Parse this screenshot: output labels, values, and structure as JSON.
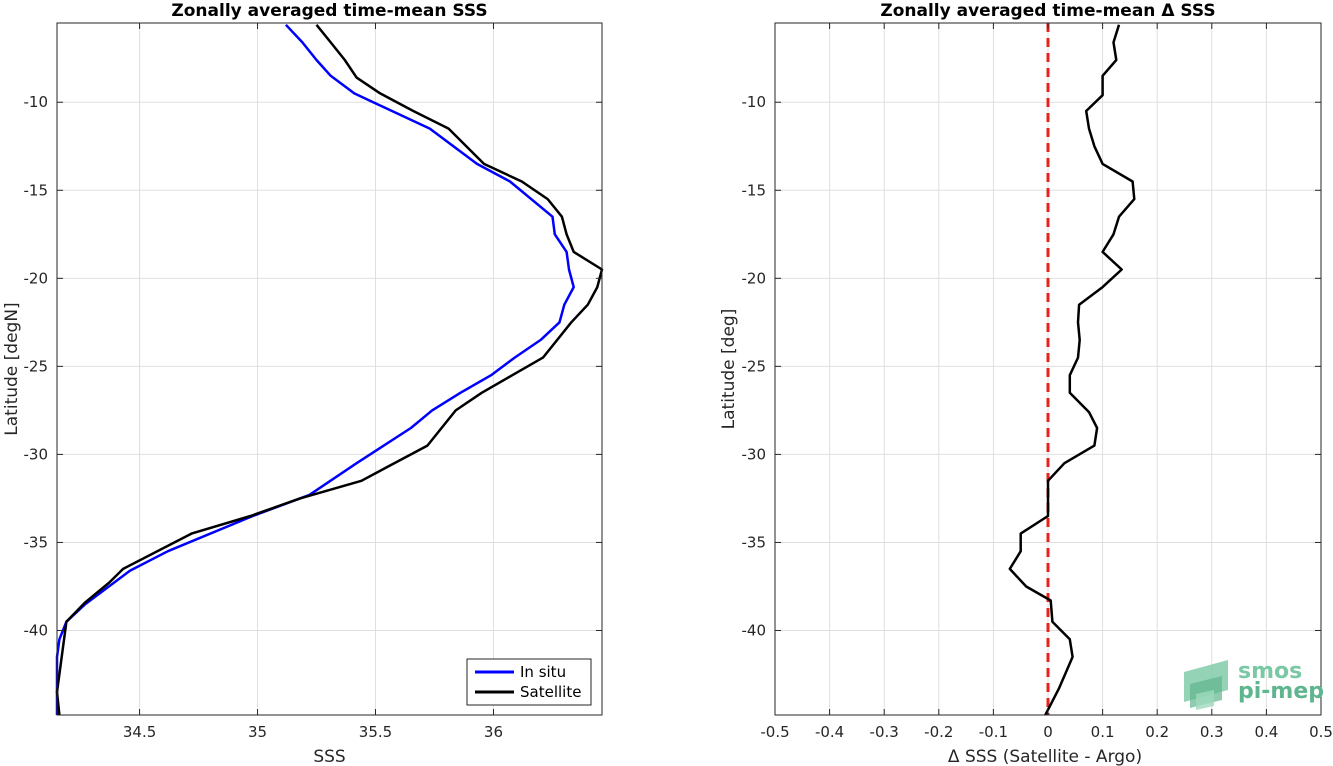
{
  "chart_data": [
    {
      "type": "line",
      "title": "Zonally averaged time-mean SSS",
      "xlabel": "SSS",
      "ylabel": "Latitude [degN]",
      "xlim": [
        34.15,
        36.46
      ],
      "ylim": [
        -44.8,
        -5.5
      ],
      "xticks": [
        34.5,
        35,
        35.5,
        36
      ],
      "xtick_labels": [
        "34.5",
        "35",
        "35.5",
        "36"
      ],
      "yticks": [
        -10,
        -15,
        -20,
        -25,
        -30,
        -35,
        -40
      ],
      "ytick_labels": [
        "-10",
        "-15",
        "-20",
        "-25",
        "-30",
        "-35",
        "-40"
      ],
      "grid": true,
      "legend_position": "bottom-right",
      "series": [
        {
          "name": "In situ",
          "color": "#0000ff",
          "x": [
            35.12,
            35.19,
            35.25,
            35.31,
            35.41,
            35.57,
            35.73,
            35.93,
            36.07,
            36.25,
            36.26,
            36.31,
            36.32,
            36.34,
            36.3,
            36.28,
            36.2,
            36.09,
            35.99,
            35.86,
            35.74,
            35.65,
            35.42,
            35.22,
            34.98,
            34.62,
            34.46,
            34.27,
            34.19,
            34.16,
            34.15,
            34.15
          ],
          "y": [
            -5.6,
            -6.6,
            -7.6,
            -8.5,
            -9.5,
            -10.5,
            -11.5,
            -13.5,
            -14.5,
            -16.5,
            -17.5,
            -18.5,
            -19.5,
            -20.5,
            -21.5,
            -22.5,
            -23.5,
            -24.5,
            -25.5,
            -26.5,
            -27.5,
            -28.5,
            -30.5,
            -32.3,
            -33.5,
            -35.5,
            -36.6,
            -38.5,
            -39.5,
            -40.5,
            -41.5,
            -44.8
          ]
        },
        {
          "name": "Satellite",
          "color": "#000000",
          "x": [
            35.25,
            35.31,
            35.37,
            35.42,
            35.52,
            35.66,
            35.81,
            35.96,
            36.12,
            36.23,
            36.29,
            36.31,
            36.34,
            36.46,
            36.44,
            36.4,
            36.33,
            36.21,
            36.08,
            35.95,
            35.84,
            35.72,
            35.44,
            35.18,
            34.97,
            34.72,
            34.43,
            34.37,
            34.27,
            34.19,
            34.17,
            34.15,
            34.16
          ],
          "y": [
            -5.6,
            -6.6,
            -7.6,
            -8.6,
            -9.5,
            -10.5,
            -11.5,
            -13.5,
            -14.5,
            -15.5,
            -16.5,
            -17.5,
            -18.5,
            -19.5,
            -20.5,
            -21.5,
            -22.5,
            -24.5,
            -25.5,
            -26.5,
            -27.5,
            -29.5,
            -31.5,
            -32.5,
            -33.5,
            -34.5,
            -36.5,
            -37.3,
            -38.4,
            -39.5,
            -41.5,
            -43.5,
            -44.8
          ]
        }
      ]
    },
    {
      "type": "line",
      "title": "Zonally averaged time-mean Δ SSS",
      "xlabel": "Δ SSS (Satellite - Argo)",
      "ylabel": "Latitude [deg]",
      "xlim": [
        -0.5,
        0.5
      ],
      "ylim": [
        -44.8,
        -5.5
      ],
      "xticks": [
        -0.5,
        -0.4,
        -0.3,
        -0.2,
        -0.1,
        0,
        0.1,
        0.2,
        0.3,
        0.4,
        0.5
      ],
      "xtick_labels": [
        "-0.5",
        "-0.4",
        "-0.3",
        "-0.2",
        "-0.1",
        "0",
        "0.1",
        "0.2",
        "0.3",
        "0.4",
        "0.5"
      ],
      "yticks": [
        -10,
        -15,
        -20,
        -25,
        -30,
        -35,
        -40
      ],
      "ytick_labels": [
        "-10",
        "-15",
        "-20",
        "-25",
        "-30",
        "-35",
        "-40"
      ],
      "grid": true,
      "reference_line": {
        "x": 0,
        "color": "#e8231f",
        "style": "dashed"
      },
      "series": [
        {
          "color": "#000000",
          "x": [
            0.13,
            0.12,
            0.125,
            0.1,
            0.1,
            0.07,
            0.075,
            0.085,
            0.1,
            0.155,
            0.158,
            0.13,
            0.12,
            0.1,
            0.135,
            0.1,
            0.057,
            0.055,
            0.058,
            0.055,
            0.04,
            0.04,
            0.075,
            0.09,
            0.085,
            0.03,
            0.0,
            0.0,
            -0.05,
            -0.05,
            -0.07,
            -0.04,
            0.005,
            0.008,
            0.04,
            0.045,
            0.02,
            -0.005
          ],
          "y": [
            -5.6,
            -6.6,
            -7.6,
            -8.5,
            -9.6,
            -10.5,
            -11.5,
            -12.5,
            -13.5,
            -14.5,
            -15.5,
            -16.5,
            -17.5,
            -18.5,
            -19.5,
            -20.5,
            -21.5,
            -22.5,
            -23.5,
            -24.5,
            -25.5,
            -26.5,
            -27.6,
            -28.5,
            -29.5,
            -30.5,
            -31.5,
            -33.5,
            -34.5,
            -35.5,
            -36.5,
            -37.5,
            -38.3,
            -39.5,
            -40.5,
            -41.5,
            -43.3,
            -44.8
          ]
        }
      ]
    }
  ],
  "legend": {
    "items": [
      {
        "label": "In situ",
        "color": "#0000ff"
      },
      {
        "label": "Satellite",
        "color": "#000000"
      }
    ]
  },
  "logo": {
    "line1": "smos",
    "line2": "pi-mep",
    "colors": [
      "#7bc8a4",
      "#5fb58d",
      "#9ed9bd"
    ]
  }
}
